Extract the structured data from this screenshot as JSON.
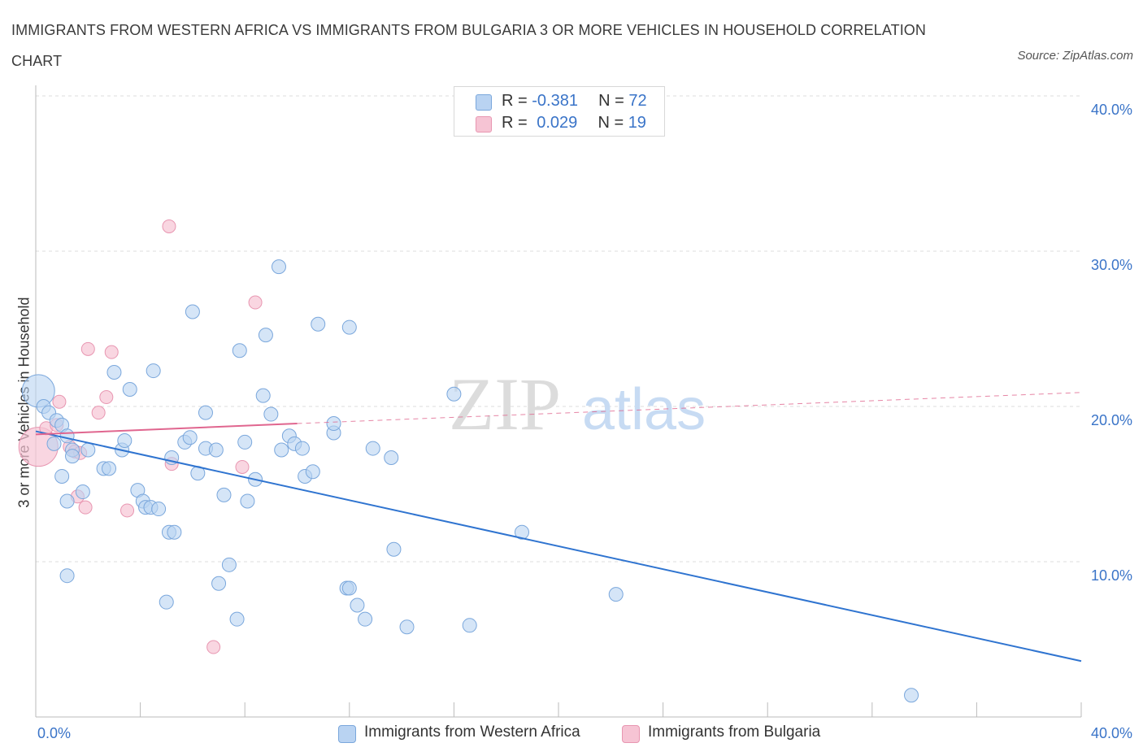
{
  "title": "IMMIGRANTS FROM WESTERN AFRICA VS IMMIGRANTS FROM BULGARIA 3 OR MORE VEHICLES IN HOUSEHOLD CORRELATION CHART",
  "source": "Source: ZipAtlas.com",
  "watermark": {
    "zip": "ZIP",
    "atlas": "atlas"
  },
  "legend": {
    "rows": [
      {
        "r_label": "R = ",
        "r_value": "-0.381",
        "n_label": "N = ",
        "n_value": "72"
      },
      {
        "r_label": "R = ",
        "r_value": "0.029",
        "n_label": "N = ",
        "n_value": "19"
      }
    ]
  },
  "bottom_legend": [
    "Immigrants from Western Africa",
    "Immigrants from Bulgaria"
  ],
  "colors": {
    "blue_fill": "#b9d3f2",
    "blue_stroke": "#7aa7dc",
    "blue_line": "#2f74d0",
    "pink_fill": "#f6c4d4",
    "pink_stroke": "#e896b1",
    "pink_line": "#e0668f",
    "axis_text": "#3a74c8",
    "grid": "#dddddd"
  },
  "chart_data": {
    "type": "scatter",
    "title": "IMMIGRANTS FROM WESTERN AFRICA VS IMMIGRANTS FROM BULGARIA 3 OR MORE VEHICLES IN HOUSEHOLD CORRELATION CHART",
    "xlabel": "",
    "ylabel": "3 or more Vehicles in Household",
    "xlim": [
      0,
      40
    ],
    "ylim": [
      0,
      40
    ],
    "x_tick_labels": [
      "0.0%",
      "40.0%"
    ],
    "y_ticks": [
      10,
      20,
      30,
      40
    ],
    "y_tick_labels": [
      "10.0%",
      "20.0%",
      "30.0%",
      "40.0%"
    ],
    "grid": true,
    "legend_position": "top-center",
    "series": [
      {
        "name": "Immigrants from Western Africa",
        "color": "#b9d3f2",
        "R": -0.381,
        "N": 72,
        "trend": {
          "x": [
            0,
            40
          ],
          "y": [
            18.4,
            3.6
          ],
          "style": "solid"
        },
        "points": [
          {
            "x": 0.1,
            "y": 21.0,
            "big": true
          },
          {
            "x": 0.3,
            "y": 20.0
          },
          {
            "x": 0.5,
            "y": 19.6
          },
          {
            "x": 0.8,
            "y": 19.1
          },
          {
            "x": 0.7,
            "y": 17.6
          },
          {
            "x": 1.0,
            "y": 18.8
          },
          {
            "x": 1.2,
            "y": 18.1
          },
          {
            "x": 1.4,
            "y": 17.2
          },
          {
            "x": 1.4,
            "y": 16.8
          },
          {
            "x": 1.0,
            "y": 15.5
          },
          {
            "x": 2.0,
            "y": 17.2
          },
          {
            "x": 1.8,
            "y": 14.5
          },
          {
            "x": 2.6,
            "y": 16.0
          },
          {
            "x": 2.8,
            "y": 16.0
          },
          {
            "x": 3.0,
            "y": 22.2
          },
          {
            "x": 3.3,
            "y": 17.2
          },
          {
            "x": 3.4,
            "y": 17.8
          },
          {
            "x": 3.6,
            "y": 21.1
          },
          {
            "x": 3.9,
            "y": 14.6
          },
          {
            "x": 4.1,
            "y": 13.9
          },
          {
            "x": 4.2,
            "y": 13.5
          },
          {
            "x": 4.4,
            "y": 13.5
          },
          {
            "x": 4.5,
            "y": 22.3
          },
          {
            "x": 4.7,
            "y": 13.4
          },
          {
            "x": 5.1,
            "y": 11.9
          },
          {
            "x": 5.3,
            "y": 11.9
          },
          {
            "x": 5.2,
            "y": 16.7
          },
          {
            "x": 5.7,
            "y": 17.7
          },
          {
            "x": 5.9,
            "y": 18.0
          },
          {
            "x": 6.0,
            "y": 26.1
          },
          {
            "x": 6.2,
            "y": 15.7
          },
          {
            "x": 6.5,
            "y": 17.3
          },
          {
            "x": 6.9,
            "y": 17.2
          },
          {
            "x": 6.5,
            "y": 19.6
          },
          {
            "x": 7.2,
            "y": 14.3
          },
          {
            "x": 7.0,
            "y": 8.6
          },
          {
            "x": 7.4,
            "y": 9.8
          },
          {
            "x": 7.7,
            "y": 6.3
          },
          {
            "x": 7.8,
            "y": 23.6
          },
          {
            "x": 8.0,
            "y": 17.7
          },
          {
            "x": 8.1,
            "y": 13.9
          },
          {
            "x": 8.4,
            "y": 15.3
          },
          {
            "x": 8.7,
            "y": 20.7
          },
          {
            "x": 8.8,
            "y": 24.6
          },
          {
            "x": 9.0,
            "y": 19.5
          },
          {
            "x": 9.3,
            "y": 29.0
          },
          {
            "x": 9.4,
            "y": 17.2
          },
          {
            "x": 9.7,
            "y": 18.1
          },
          {
            "x": 9.9,
            "y": 17.6
          },
          {
            "x": 10.2,
            "y": 17.3
          },
          {
            "x": 10.3,
            "y": 15.5
          },
          {
            "x": 10.6,
            "y": 15.8
          },
          {
            "x": 10.8,
            "y": 25.3
          },
          {
            "x": 11.4,
            "y": 18.3
          },
          {
            "x": 11.4,
            "y": 18.9
          },
          {
            "x": 11.9,
            "y": 8.3
          },
          {
            "x": 12.0,
            "y": 8.3
          },
          {
            "x": 12.0,
            "y": 25.1
          },
          {
            "x": 12.3,
            "y": 7.2
          },
          {
            "x": 12.6,
            "y": 6.3
          },
          {
            "x": 12.9,
            "y": 17.3
          },
          {
            "x": 13.6,
            "y": 16.7
          },
          {
            "x": 13.7,
            "y": 10.8
          },
          {
            "x": 14.2,
            "y": 5.8
          },
          {
            "x": 16.0,
            "y": 20.8
          },
          {
            "x": 16.6,
            "y": 5.9
          },
          {
            "x": 18.6,
            "y": 11.9
          },
          {
            "x": 22.2,
            "y": 7.9
          },
          {
            "x": 33.5,
            "y": 1.4
          },
          {
            "x": 1.2,
            "y": 13.9
          },
          {
            "x": 5.0,
            "y": 7.4
          },
          {
            "x": 1.2,
            "y": 9.1
          }
        ]
      },
      {
        "name": "Immigrants from Bulgaria",
        "color": "#f6c4d4",
        "R": 0.029,
        "N": 19,
        "trend": {
          "x": [
            0,
            10
          ],
          "y": [
            18.2,
            18.9
          ],
          "style": "solid",
          "extended": {
            "x": [
              10,
              40
            ],
            "y": [
              18.9,
              20.9
            ],
            "style": "dashed"
          }
        },
        "points": [
          {
            "x": 0.1,
            "y": 17.4,
            "big": true
          },
          {
            "x": 0.4,
            "y": 18.6
          },
          {
            "x": 0.8,
            "y": 18.8
          },
          {
            "x": 0.9,
            "y": 20.3
          },
          {
            "x": 1.3,
            "y": 17.4
          },
          {
            "x": 1.5,
            "y": 17.1
          },
          {
            "x": 1.7,
            "y": 17.0
          },
          {
            "x": 1.6,
            "y": 14.2
          },
          {
            "x": 1.9,
            "y": 13.5
          },
          {
            "x": 2.0,
            "y": 23.7
          },
          {
            "x": 2.4,
            "y": 19.6
          },
          {
            "x": 2.7,
            "y": 20.6
          },
          {
            "x": 2.9,
            "y": 23.5
          },
          {
            "x": 3.5,
            "y": 13.3
          },
          {
            "x": 5.1,
            "y": 31.6
          },
          {
            "x": 5.2,
            "y": 16.3
          },
          {
            "x": 6.8,
            "y": 4.5
          },
          {
            "x": 7.9,
            "y": 16.1
          },
          {
            "x": 8.4,
            "y": 26.7
          }
        ]
      }
    ]
  }
}
